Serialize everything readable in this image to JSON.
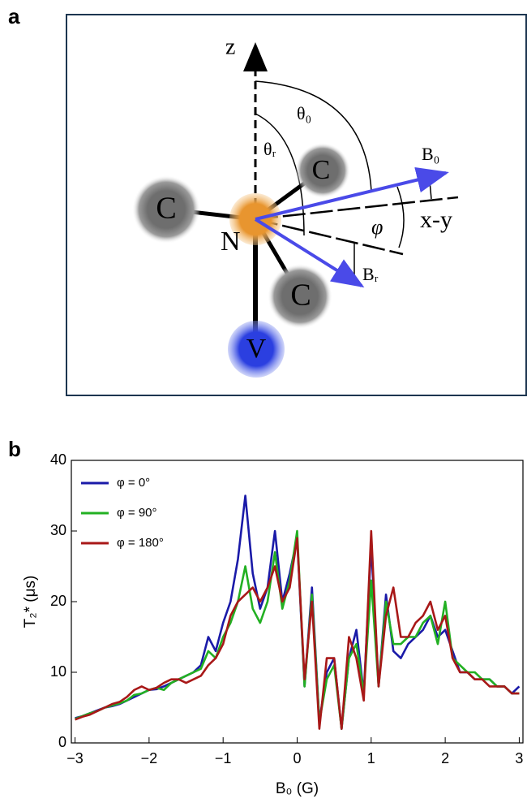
{
  "panel_a": {
    "label": "a",
    "labels": {
      "z": "z",
      "theta0": "θ₀",
      "thetar": "θᵣ",
      "c1": "C",
      "c2": "C",
      "c3": "C",
      "n": "N",
      "v": "V",
      "b0": "B₀",
      "br": "Bᵣ",
      "phi": "φ",
      "xy": "x-y"
    }
  },
  "panel_b": {
    "label": "b"
  },
  "chart_data": {
    "type": "line",
    "xlabel": "B₀ (G)",
    "ylabel": "T₂* (μs)",
    "x": [
      -3,
      -2.9,
      -2.8,
      -2.7,
      -2.6,
      -2.5,
      -2.4,
      -2.3,
      -2.2,
      -2.1,
      -2,
      -1.9,
      -1.8,
      -1.7,
      -1.6,
      -1.5,
      -1.4,
      -1.3,
      -1.2,
      -1.1,
      -1,
      -0.9,
      -0.8,
      -0.7,
      -0.6,
      -0.5,
      -0.4,
      -0.3,
      -0.2,
      -0.1,
      0,
      0.1,
      0.2,
      0.3,
      0.4,
      0.5,
      0.6,
      0.7,
      0.8,
      0.9,
      1,
      1.1,
      1.2,
      1.3,
      1.4,
      1.5,
      1.6,
      1.7,
      1.8,
      1.9,
      2,
      2.1,
      2.2,
      2.3,
      2.4,
      2.5,
      2.6,
      2.7,
      2.8,
      2.9,
      3
    ],
    "series": [
      {
        "name": "φ = 0°",
        "color": "#1a1aa8",
        "values": [
          3.5,
          3.8,
          4.2,
          4.6,
          5,
          5.2,
          5.5,
          6,
          6.5,
          7,
          7.5,
          7.6,
          8,
          8.5,
          9,
          9.5,
          10,
          11,
          15,
          13,
          17,
          20,
          26,
          35,
          24,
          19,
          22,
          30,
          20,
          24,
          29,
          8,
          22,
          3,
          10,
          12,
          2,
          12,
          16,
          7,
          28,
          8,
          21,
          13,
          12,
          14,
          15,
          16,
          18,
          15,
          16,
          13,
          10,
          10,
          9,
          9,
          9,
          8,
          8,
          7,
          8
        ]
      },
      {
        "name": "φ = 90°",
        "color": "#22b022",
        "values": [
          3.4,
          3.8,
          4.2,
          4.5,
          5,
          5.3,
          5.6,
          6,
          6.8,
          7,
          7.5,
          7.8,
          7.5,
          8.5,
          9,
          9.5,
          10,
          10.5,
          13,
          12,
          15,
          17,
          20,
          25,
          19,
          17,
          20,
          27,
          19,
          23,
          30,
          8,
          21,
          3,
          9,
          11,
          2,
          12,
          14,
          7,
          23,
          8,
          20,
          14,
          14,
          15,
          15,
          17,
          18,
          14,
          20,
          12,
          11,
          10,
          10,
          9,
          9,
          8,
          8,
          7,
          7
        ]
      },
      {
        "name": "φ = 180°",
        "color": "#a81818",
        "values": [
          3.3,
          3.7,
          4,
          4.5,
          5,
          5.5,
          5.8,
          6.5,
          7.5,
          8,
          7.5,
          7.8,
          8.5,
          9,
          9,
          8.5,
          9,
          9.5,
          11,
          12,
          14,
          18,
          20,
          21,
          22,
          20,
          22,
          25,
          20,
          22,
          29,
          9,
          20,
          2,
          12,
          12,
          2,
          15,
          12,
          6,
          30,
          8,
          18,
          22,
          15,
          15,
          17,
          18,
          20,
          16,
          18,
          12,
          10,
          10,
          9,
          9,
          8,
          8,
          8,
          7,
          7
        ]
      }
    ],
    "xlim": [
      -3.05,
      3.05
    ],
    "ylim": [
      0,
      40
    ],
    "xticks": [
      {
        "value": -3,
        "label": "−3"
      },
      {
        "value": -2,
        "label": "−2"
      },
      {
        "value": -1,
        "label": "−1"
      },
      0,
      1,
      2,
      3
    ],
    "yticks": [
      0,
      10,
      20,
      30,
      40
    ],
    "legend": "upper left"
  }
}
